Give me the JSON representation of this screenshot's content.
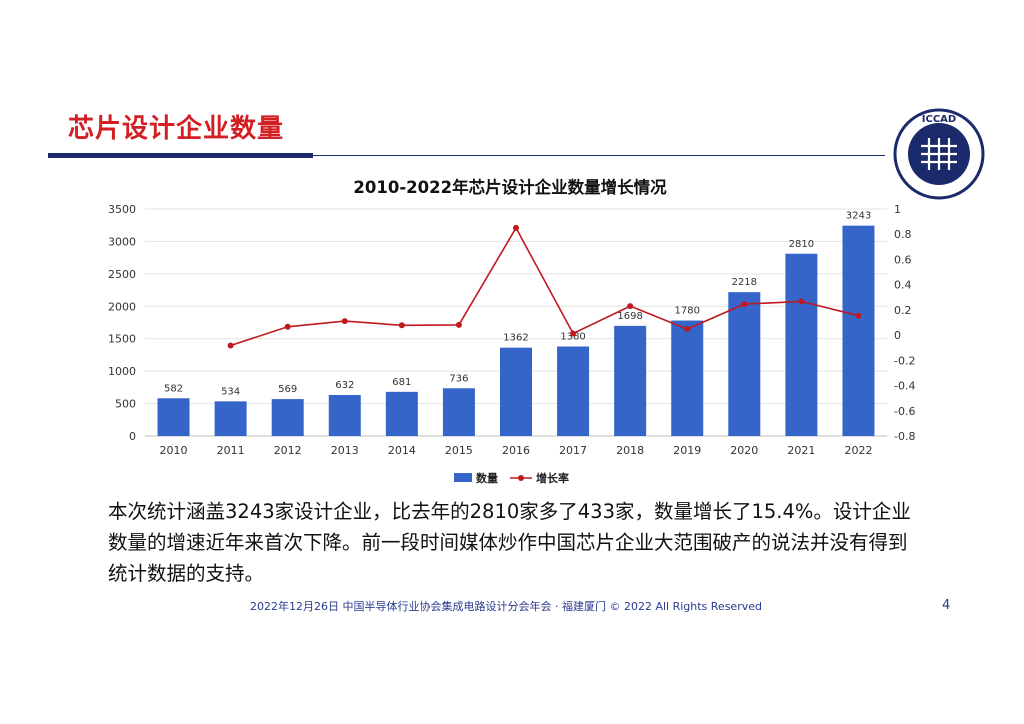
{
  "slide": {
    "title": "芯片设计企业数量",
    "logo_text": "ICCAD",
    "body": "本次统计涵盖3243家设计企业，比去年的2810家多了433家，数量增长了15.4%。设计企业数量的增速近年来首次下降。前一段时间媒体炒作中国芯片企业大范围破产的说法并没有得到统计数据的支持。",
    "footer": "2022年12月26日 中国半导体行业协会集成电路设计分会年会 · 福建厦门 © 2022 All Rights Reserved",
    "page_number": "4"
  },
  "colors": {
    "title": "#d11f24",
    "navy": "#1b2a6b",
    "bar": "#3565c9",
    "line": "#c0191f"
  },
  "chart_data": {
    "type": "bar",
    "title": "2010-2022年芯片设计企业数量增长情况",
    "categories": [
      "2010",
      "2011",
      "2012",
      "2013",
      "2014",
      "2015",
      "2016",
      "2017",
      "2018",
      "2019",
      "2020",
      "2021",
      "2022"
    ],
    "series": [
      {
        "name": "数量",
        "type": "bar",
        "axis": "left",
        "values": [
          582,
          534,
          569,
          632,
          681,
          736,
          1362,
          1380,
          1698,
          1780,
          2218,
          2810,
          3243
        ]
      },
      {
        "name": "增长率",
        "type": "line",
        "axis": "right",
        "values": [
          null,
          -0.082,
          0.066,
          0.111,
          0.078,
          0.081,
          0.85,
          0.013,
          0.23,
          0.048,
          0.246,
          0.267,
          0.154
        ]
      }
    ],
    "data_labels": [
      "582",
      "534",
      "569",
      "632",
      "681",
      "736",
      "1362",
      "1380",
      "1698",
      "1780",
      "2218",
      "2810",
      "3243"
    ],
    "y_left": {
      "min": 0,
      "max": 3500,
      "ticks": [
        "0",
        "500",
        "1000",
        "1500",
        "2000",
        "2500",
        "3000",
        "3500"
      ]
    },
    "y_right": {
      "min": -0.8,
      "max": 1,
      "ticks": [
        "-0.8",
        "-0.6",
        "-0.4",
        "-0.2",
        "0",
        "0.2",
        "0.4",
        "0.6",
        "0.8",
        "1"
      ]
    },
    "legend": [
      "数量",
      "增长率"
    ],
    "grid": true
  }
}
